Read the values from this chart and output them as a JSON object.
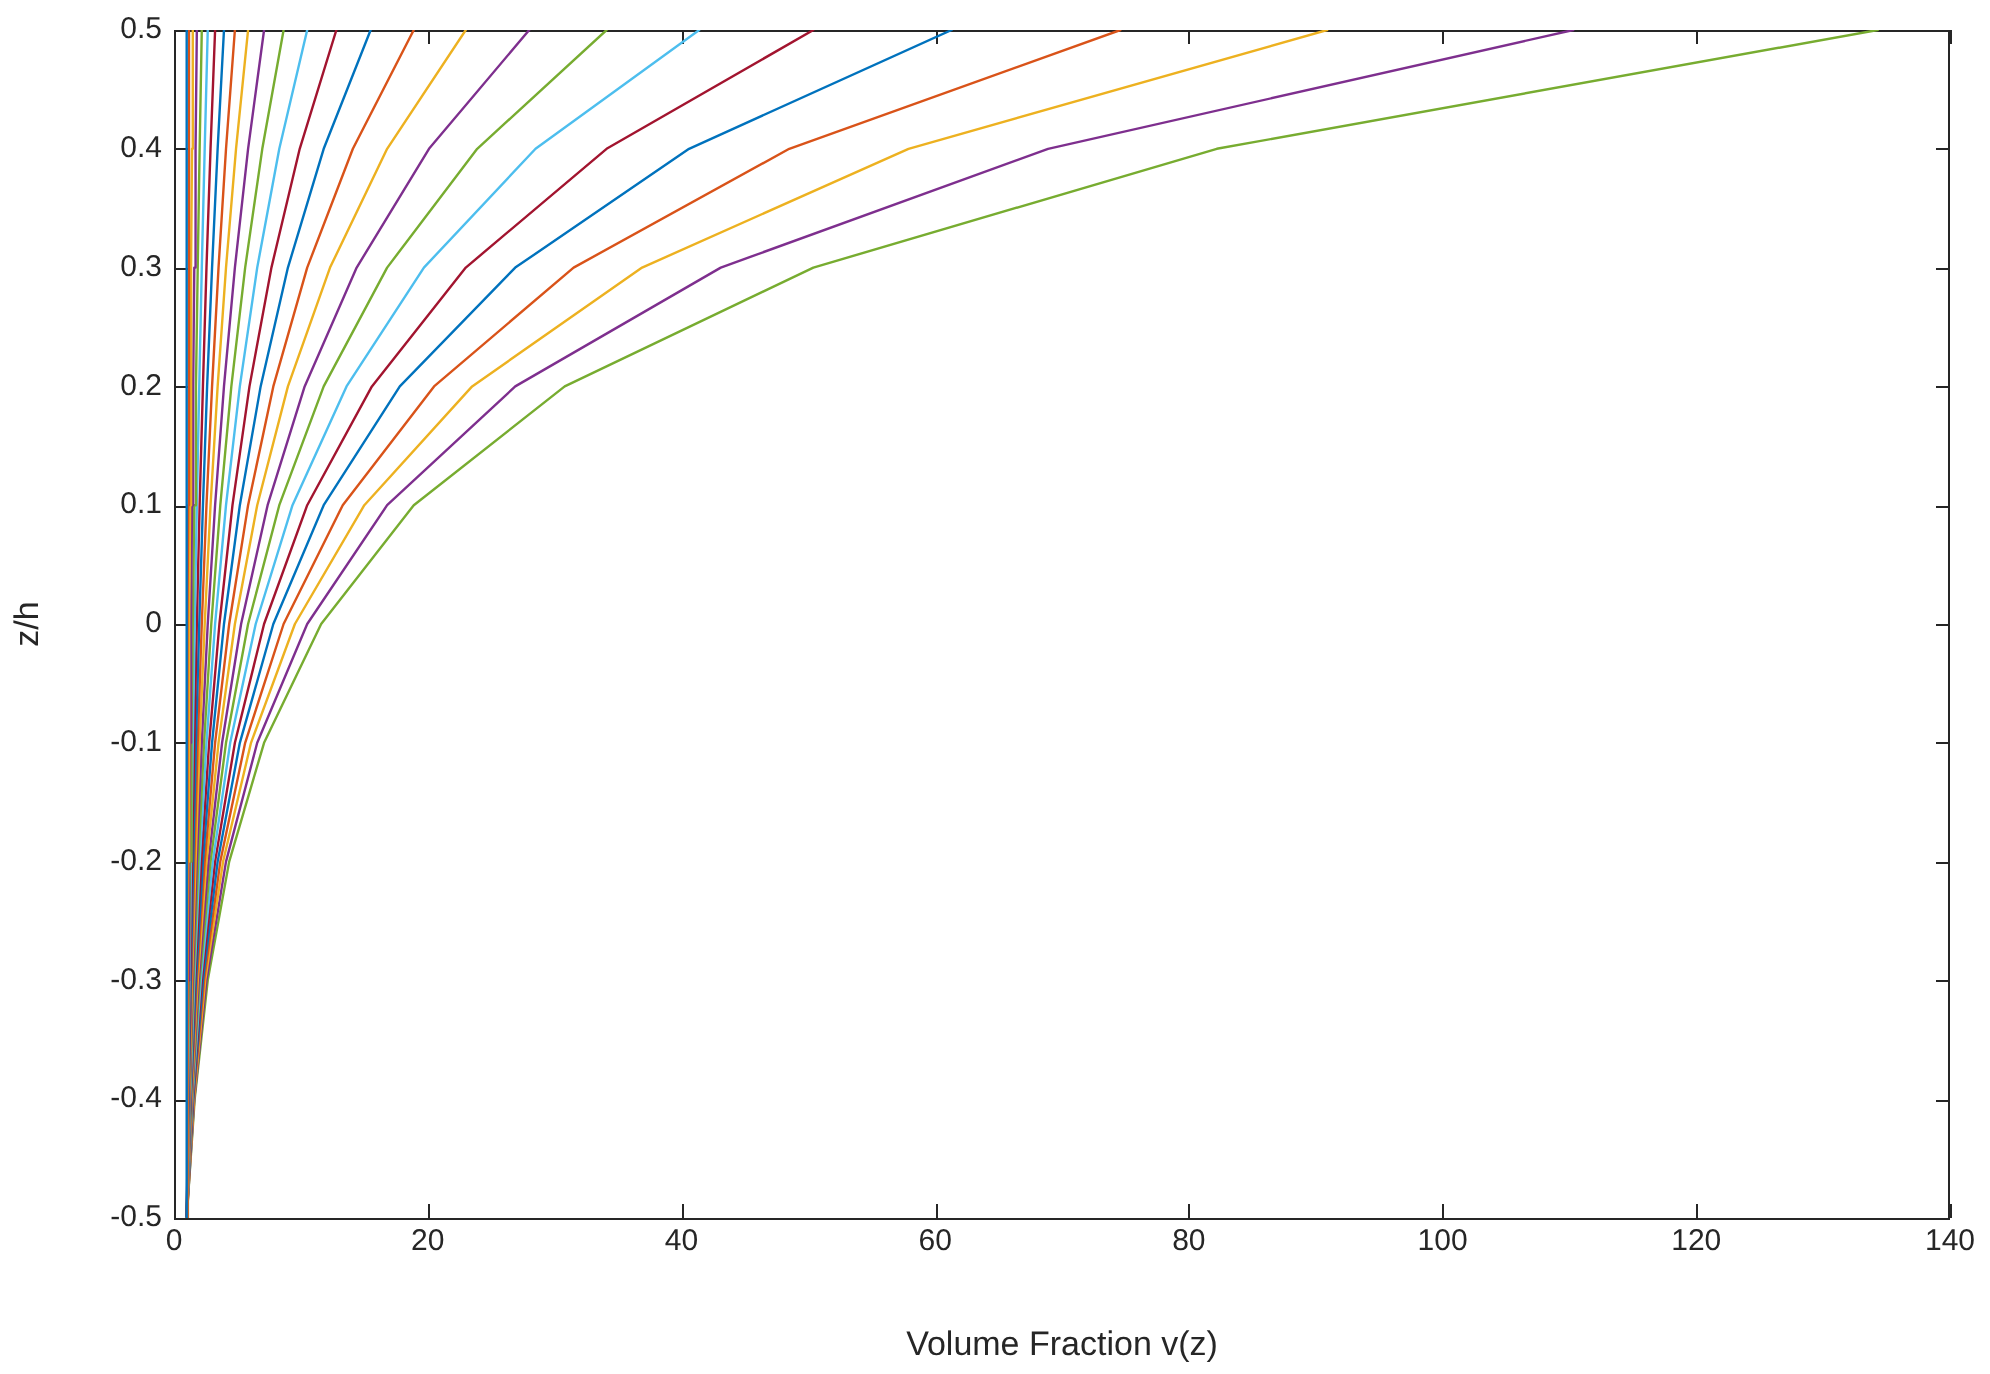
{
  "chart_data": {
    "type": "line",
    "xlabel": "Volume Fraction v(z)",
    "ylabel": "z/h",
    "xlim": [
      0,
      140
    ],
    "xticks": [
      0,
      20,
      40,
      60,
      80,
      100,
      120,
      140
    ],
    "ylim": [
      -0.5,
      0.5
    ],
    "yticks": [
      -0.5,
      -0.4,
      -0.3,
      -0.2,
      -0.1,
      0,
      0.1,
      0.2,
      0.3,
      0.4,
      0.5
    ],
    "grid": false,
    "legend": false,
    "marker": "none",
    "line_style": "solid",
    "series": [
      {
        "color": "#0072bd",
        "x": [
          1,
          1,
          1,
          1,
          1,
          1,
          1,
          1,
          1,
          1,
          1
        ],
        "values": [
          -0.5,
          -0.4,
          -0.3,
          -0.2,
          -0.1,
          0,
          0.1,
          0.2,
          0.3,
          0.4,
          0.5
        ]
      },
      {
        "color": "#d95319",
        "x": [
          1,
          1.02,
          1.04,
          1.06,
          1.08,
          1.1,
          1.12,
          1.15,
          1.17,
          1.19,
          1.22
        ],
        "values": [
          -0.5,
          -0.4,
          -0.3,
          -0.2,
          -0.1,
          0,
          0.1,
          0.2,
          0.3,
          0.4,
          0.5
        ]
      },
      {
        "color": "#edb120",
        "x": [
          1,
          1.04,
          1.08,
          1.12,
          1.17,
          1.22,
          1.27,
          1.32,
          1.37,
          1.42,
          1.48
        ],
        "values": [
          -0.5,
          -0.4,
          -0.3,
          -0.2,
          -0.1,
          0,
          0.1,
          0.2,
          0.3,
          0.4,
          0.5
        ]
      },
      {
        "color": "#7e2f8e",
        "x": [
          1,
          1.06,
          1.12,
          1.19,
          1.27,
          1.34,
          1.42,
          1.51,
          1.6,
          1.7,
          1.8
        ],
        "values": [
          -0.5,
          -0.4,
          -0.3,
          -0.2,
          -0.1,
          0,
          0.1,
          0.2,
          0.3,
          0.4,
          0.5
        ]
      },
      {
        "color": "#77ac30",
        "x": [
          1,
          1.08,
          1.17,
          1.27,
          1.37,
          1.48,
          1.6,
          1.73,
          1.87,
          2.02,
          2.19
        ],
        "values": [
          -0.5,
          -0.4,
          -0.3,
          -0.2,
          -0.1,
          0,
          0.1,
          0.2,
          0.3,
          0.4,
          0.5
        ]
      },
      {
        "color": "#4dbeee",
        "x": [
          1,
          1.1,
          1.22,
          1.34,
          1.48,
          1.63,
          1.8,
          1.99,
          2.19,
          2.42,
          2.66
        ],
        "values": [
          -0.5,
          -0.4,
          -0.3,
          -0.2,
          -0.1,
          0,
          0.1,
          0.2,
          0.3,
          0.4,
          0.5
        ]
      },
      {
        "color": "#a2142f",
        "x": [
          1,
          1.12,
          1.27,
          1.42,
          1.6,
          1.8,
          2.02,
          2.28,
          2.56,
          2.88,
          3.24
        ],
        "values": [
          -0.5,
          -0.4,
          -0.3,
          -0.2,
          -0.1,
          0,
          0.1,
          0.2,
          0.3,
          0.4,
          0.5
        ]
      },
      {
        "color": "#0072bd",
        "x": [
          1,
          1.15,
          1.32,
          1.51,
          1.73,
          1.99,
          2.28,
          2.61,
          3,
          3.44,
          3.94
        ],
        "values": [
          -0.5,
          -0.4,
          -0.3,
          -0.2,
          -0.1,
          0,
          0.1,
          0.2,
          0.3,
          0.4,
          0.5
        ]
      },
      {
        "color": "#d95319",
        "x": [
          1,
          1.17,
          1.37,
          1.6,
          1.87,
          2.19,
          2.56,
          3,
          3.51,
          4.1,
          4.8
        ],
        "values": [
          -0.5,
          -0.4,
          -0.3,
          -0.2,
          -0.1,
          0,
          0.1,
          0.2,
          0.3,
          0.4,
          0.5
        ]
      },
      {
        "color": "#edb120",
        "x": [
          1,
          1.19,
          1.42,
          1.7,
          2.02,
          2.42,
          2.88,
          3.44,
          4.1,
          4.89,
          5.84
        ],
        "values": [
          -0.5,
          -0.4,
          -0.3,
          -0.2,
          -0.1,
          0,
          0.1,
          0.2,
          0.3,
          0.4,
          0.5
        ]
      },
      {
        "color": "#7e2f8e",
        "x": [
          1,
          1.22,
          1.48,
          1.8,
          2.19,
          2.66,
          3.24,
          3.94,
          4.8,
          5.84,
          7.1
        ],
        "values": [
          -0.5,
          -0.4,
          -0.3,
          -0.2,
          -0.1,
          0,
          0.1,
          0.2,
          0.3,
          0.4,
          0.5
        ]
      },
      {
        "color": "#77ac30",
        "x": [
          1,
          1.24,
          1.54,
          1.91,
          2.37,
          2.94,
          3.65,
          4.52,
          5.61,
          6.96,
          8.64
        ],
        "values": [
          -0.5,
          -0.4,
          -0.3,
          -0.2,
          -0.1,
          0,
          0.1,
          0.2,
          0.3,
          0.4,
          0.5
        ]
      },
      {
        "color": "#4dbeee",
        "x": [
          1,
          1.27,
          1.6,
          2.02,
          2.56,
          3.24,
          4.1,
          5.19,
          6.56,
          8.3,
          10.5
        ],
        "values": [
          -0.5,
          -0.4,
          -0.3,
          -0.2,
          -0.1,
          0,
          0.1,
          0.2,
          0.3,
          0.4,
          0.5
        ]
      },
      {
        "color": "#a2142f",
        "x": [
          1,
          1.29,
          1.66,
          2.15,
          2.77,
          3.58,
          4.61,
          5.95,
          7.68,
          9.91,
          12.8
        ],
        "values": [
          -0.5,
          -0.4,
          -0.3,
          -0.2,
          -0.1,
          0,
          0.1,
          0.2,
          0.3,
          0.4,
          0.5
        ]
      },
      {
        "color": "#0072bd",
        "x": [
          1,
          1.32,
          1.73,
          2.28,
          3,
          3.94,
          5.19,
          6.83,
          8.98,
          11.8,
          15.5
        ],
        "values": [
          -0.5,
          -0.4,
          -0.3,
          -0.2,
          -0.1,
          0,
          0.1,
          0.2,
          0.3,
          0.4,
          0.5
        ]
      },
      {
        "color": "#d95319",
        "x": [
          1,
          1.34,
          1.8,
          2.42,
          3.24,
          4.35,
          5.84,
          7.83,
          10.5,
          14.1,
          18.9
        ],
        "values": [
          -0.5,
          -0.4,
          -0.3,
          -0.2,
          -0.1,
          0,
          0.1,
          0.2,
          0.3,
          0.4,
          0.5
        ]
      },
      {
        "color": "#edb120",
        "x": [
          1,
          1.37,
          1.87,
          2.56,
          3.51,
          4.8,
          6.56,
          8.98,
          12.3,
          16.8,
          23
        ],
        "values": [
          -0.5,
          -0.4,
          -0.3,
          -0.2,
          -0.1,
          0,
          0.1,
          0.2,
          0.3,
          0.4,
          0.5
        ]
      },
      {
        "color": "#7e2f8e",
        "x": [
          1,
          1.4,
          1.95,
          2.72,
          3.79,
          5.29,
          7.38,
          10.3,
          14.4,
          20.1,
          28
        ],
        "values": [
          -0.5,
          -0.4,
          -0.3,
          -0.2,
          -0.1,
          0,
          0.1,
          0.2,
          0.3,
          0.4,
          0.5
        ]
      },
      {
        "color": "#77ac30",
        "x": [
          1,
          1.42,
          2.02,
          2.88,
          4.1,
          5.84,
          8.3,
          11.8,
          16.8,
          23.9,
          34.1
        ],
        "values": [
          -0.5,
          -0.4,
          -0.3,
          -0.2,
          -0.1,
          0,
          0.1,
          0.2,
          0.3,
          0.4,
          0.5
        ]
      },
      {
        "color": "#4dbeee",
        "x": [
          1,
          1.45,
          2.11,
          3.06,
          4.43,
          6.44,
          9.34,
          13.6,
          19.7,
          28.5,
          41.4
        ],
        "values": [
          -0.5,
          -0.4,
          -0.3,
          -0.2,
          -0.1,
          0,
          0.1,
          0.2,
          0.3,
          0.4,
          0.5
        ]
      },
      {
        "color": "#a2142f",
        "x": [
          1,
          1.48,
          2.19,
          3.24,
          4.8,
          7.1,
          10.5,
          15.6,
          23,
          34.1,
          50.4
        ],
        "values": [
          -0.5,
          -0.4,
          -0.3,
          -0.2,
          -0.1,
          0,
          0.1,
          0.2,
          0.3,
          0.4,
          0.5
        ]
      },
      {
        "color": "#0072bd",
        "x": [
          1,
          1.51,
          2.28,
          3.44,
          5.19,
          7.83,
          11.8,
          17.8,
          26.9,
          40.6,
          61.3
        ],
        "values": [
          -0.5,
          -0.4,
          -0.3,
          -0.2,
          -0.1,
          0,
          0.1,
          0.2,
          0.3,
          0.4,
          0.5
        ]
      },
      {
        "color": "#d95319",
        "x": [
          1,
          1.54,
          2.37,
          3.65,
          5.61,
          8.64,
          13.3,
          20.5,
          31.5,
          48.5,
          74.6
        ],
        "values": [
          -0.5,
          -0.4,
          -0.3,
          -0.2,
          -0.1,
          0,
          0.1,
          0.2,
          0.3,
          0.4,
          0.5
        ]
      },
      {
        "color": "#edb120",
        "x": [
          1,
          1.57,
          2.46,
          3.87,
          6.07,
          9.53,
          15,
          23.5,
          36.9,
          57.9,
          90.9
        ],
        "values": [
          -0.5,
          -0.4,
          -0.3,
          -0.2,
          -0.1,
          0,
          0.1,
          0.2,
          0.3,
          0.4,
          0.5
        ]
      },
      {
        "color": "#7e2f8e",
        "x": [
          1,
          1.6,
          2.56,
          4.1,
          6.56,
          10.5,
          16.8,
          26.9,
          43.1,
          68.9,
          110.3
        ],
        "values": [
          -0.5,
          -0.4,
          -0.3,
          -0.2,
          -0.1,
          0,
          0.1,
          0.2,
          0.3,
          0.4,
          0.5
        ]
      },
      {
        "color": "#77ac30",
        "x": [
          1,
          1.63,
          2.66,
          4.35,
          7.1,
          11.6,
          18.9,
          30.8,
          50.4,
          82.2,
          134.3
        ],
        "values": [
          -0.5,
          -0.4,
          -0.3,
          -0.2,
          -0.1,
          0,
          0.1,
          0.2,
          0.3,
          0.4,
          0.5
        ]
      }
    ]
  }
}
